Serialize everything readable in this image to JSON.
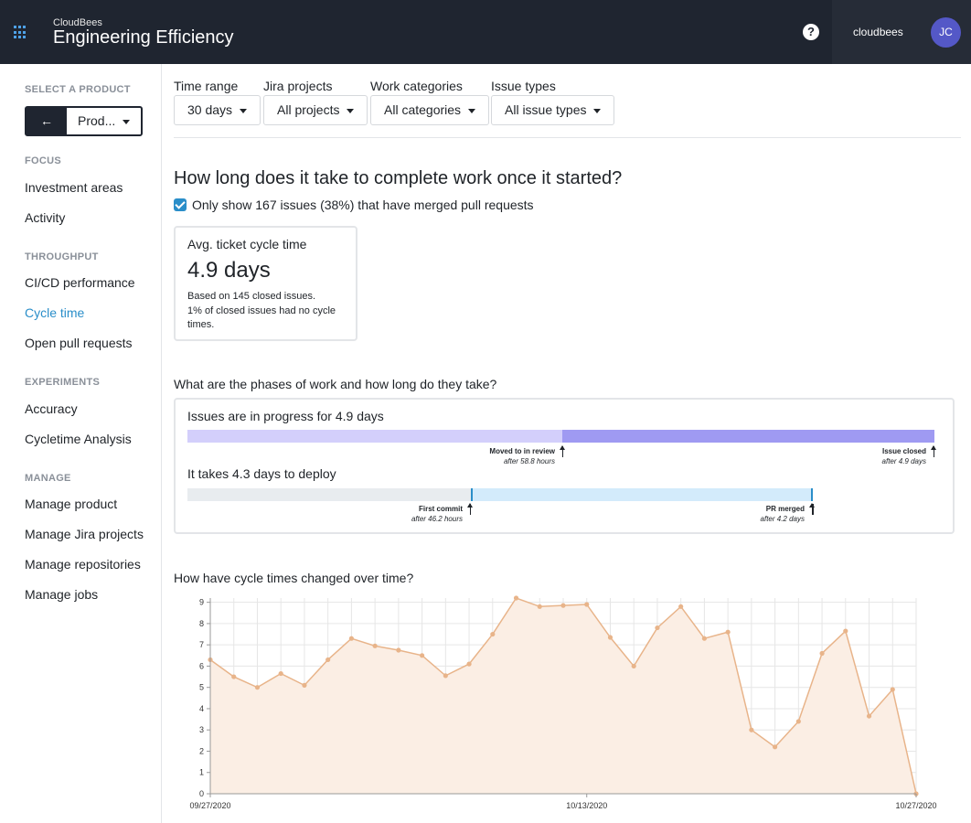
{
  "header": {
    "brand_small": "CloudBees",
    "brand_title": "Engineering Efficiency",
    "org_name": "cloudbees",
    "avatar_initials": "JC",
    "help_glyph": "?"
  },
  "sidebar": {
    "select_heading": "SELECT A PRODUCT",
    "back_glyph": "←",
    "product_value": "Prod...",
    "sections": [
      {
        "heading": "FOCUS",
        "items": [
          "Investment areas",
          "Activity"
        ]
      },
      {
        "heading": "THROUGHPUT",
        "items": [
          "CI/CD performance",
          "Cycle time",
          "Open pull requests"
        ]
      },
      {
        "heading": "EXPERIMENTS",
        "items": [
          "Accuracy",
          "Cycletime Analysis"
        ]
      },
      {
        "heading": "MANAGE",
        "items": [
          "Manage product",
          "Manage Jira projects",
          "Manage repositories",
          "Manage jobs"
        ]
      }
    ],
    "active_item": "Cycle time"
  },
  "filters": [
    {
      "label": "Time range",
      "value": "30 days"
    },
    {
      "label": "Jira projects",
      "value": "All projects"
    },
    {
      "label": "Work categories",
      "value": "All categories"
    },
    {
      "label": "Issue types",
      "value": "All issue types"
    }
  ],
  "main": {
    "question": "How long does it take to complete work once it started?",
    "checkbox_label": "Only show 167 issues (38%) that have merged pull requests",
    "checkbox_checked": true,
    "card": {
      "title": "Avg. ticket cycle time",
      "value": "4.9 days",
      "note_line1": "Based on 145 closed issues.",
      "note_line2": "1% of closed issues had no cycle times."
    },
    "phases_question": "What are the phases of work and how long do they take?",
    "phases": {
      "progress_title": "Issues are in progress for 4.9 days",
      "progress_split_fraction": 0.5,
      "review_marker": {
        "label": "Moved to in review",
        "sub": "after 58.8 hours"
      },
      "closed_marker": {
        "label": "Issue closed",
        "sub": "after 4.9 days"
      },
      "deploy_title": "It takes 4.3 days to deploy",
      "commit_marker": {
        "label": "First commit",
        "sub": "after 46.2 hours"
      },
      "merged_marker": {
        "label": "PR merged",
        "sub": "after 4.2 days"
      },
      "colors": {
        "progress_light": "#d3cffb",
        "progress_dark": "#9f9af2",
        "deploy_gray": "#e8ecef",
        "deploy_blue": "#d3ebfb",
        "deploy_line": "#2a8ec9"
      }
    },
    "trend_question": "How have cycle times changed over time?"
  },
  "chart_data": {
    "type": "area",
    "x_tick_labels": [
      "09/27/2020",
      "10/13/2020",
      "10/27/2020"
    ],
    "y_ticks": [
      0,
      1,
      2,
      3,
      4,
      5,
      6,
      7,
      8,
      9
    ],
    "ylim": [
      0,
      9.2
    ],
    "grid": true,
    "values": [
      6.3,
      5.5,
      5.0,
      5.65,
      5.1,
      6.3,
      7.3,
      6.95,
      6.75,
      6.5,
      5.55,
      6.1,
      7.5,
      9.2,
      8.8,
      8.85,
      8.9,
      7.35,
      6.0,
      7.8,
      8.8,
      7.3,
      7.6,
      3.0,
      2.2,
      3.4,
      6.6,
      7.65,
      3.65,
      4.9,
      0.0
    ],
    "color": "#e8b48a",
    "fill": "#fbeee4"
  }
}
